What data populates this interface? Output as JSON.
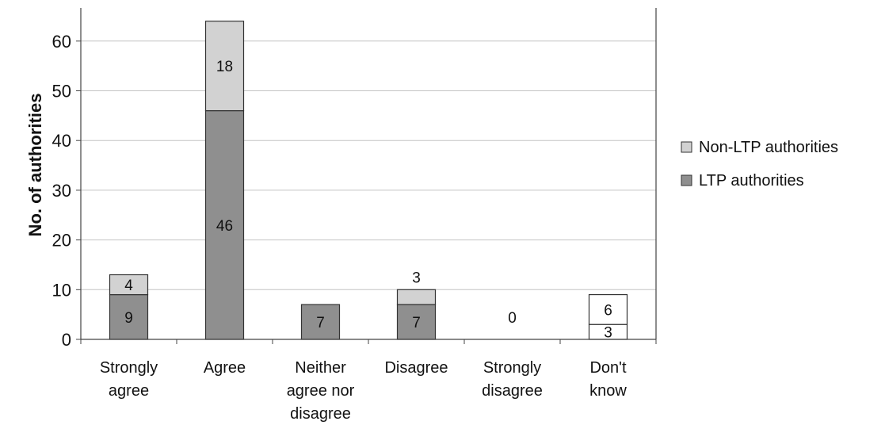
{
  "chart_data": {
    "type": "bar",
    "stacked": true,
    "title": "",
    "xlabel": "",
    "ylabel": "No. of authorities",
    "ylim": [
      0,
      70
    ],
    "yticks": [
      0,
      10,
      20,
      30,
      40,
      50,
      60
    ],
    "grid": true,
    "legend_position": "right",
    "categories": [
      [
        "Strongly",
        "agree"
      ],
      [
        "Agree"
      ],
      [
        "Neither",
        "agree nor",
        "disagree"
      ],
      [
        "Disagree"
      ],
      [
        "Strongly",
        "disagree"
      ],
      [
        "Don't",
        "know"
      ]
    ],
    "series": [
      {
        "name": "LTP authorities",
        "values": [
          9,
          46,
          7,
          7,
          0,
          3
        ],
        "color": "#8f8f8f"
      },
      {
        "name": "Non-LTP authorities",
        "values": [
          4,
          18,
          0,
          3,
          0,
          6
        ],
        "color": "#d2d2d2"
      }
    ],
    "legend_order": [
      "Non-LTP authorities",
      "LTP authorities"
    ],
    "data_labels": [
      {
        "category": 0,
        "series": 0,
        "text": "9"
      },
      {
        "category": 0,
        "series": 1,
        "text": "4"
      },
      {
        "category": 1,
        "series": 0,
        "text": "46"
      },
      {
        "category": 1,
        "series": 1,
        "text": "18"
      },
      {
        "category": 2,
        "series": 0,
        "text": "7"
      },
      {
        "category": 3,
        "series": 0,
        "text": "7"
      },
      {
        "category": 3,
        "series": 1,
        "text": "3",
        "placement": "above"
      },
      {
        "category": 4,
        "series": 0,
        "text": "0",
        "placement": "empty"
      },
      {
        "category": 5,
        "series": 0,
        "text": "3"
      },
      {
        "category": 5,
        "series": 1,
        "text": "6"
      }
    ],
    "outlined_white_categories": [
      5
    ]
  }
}
